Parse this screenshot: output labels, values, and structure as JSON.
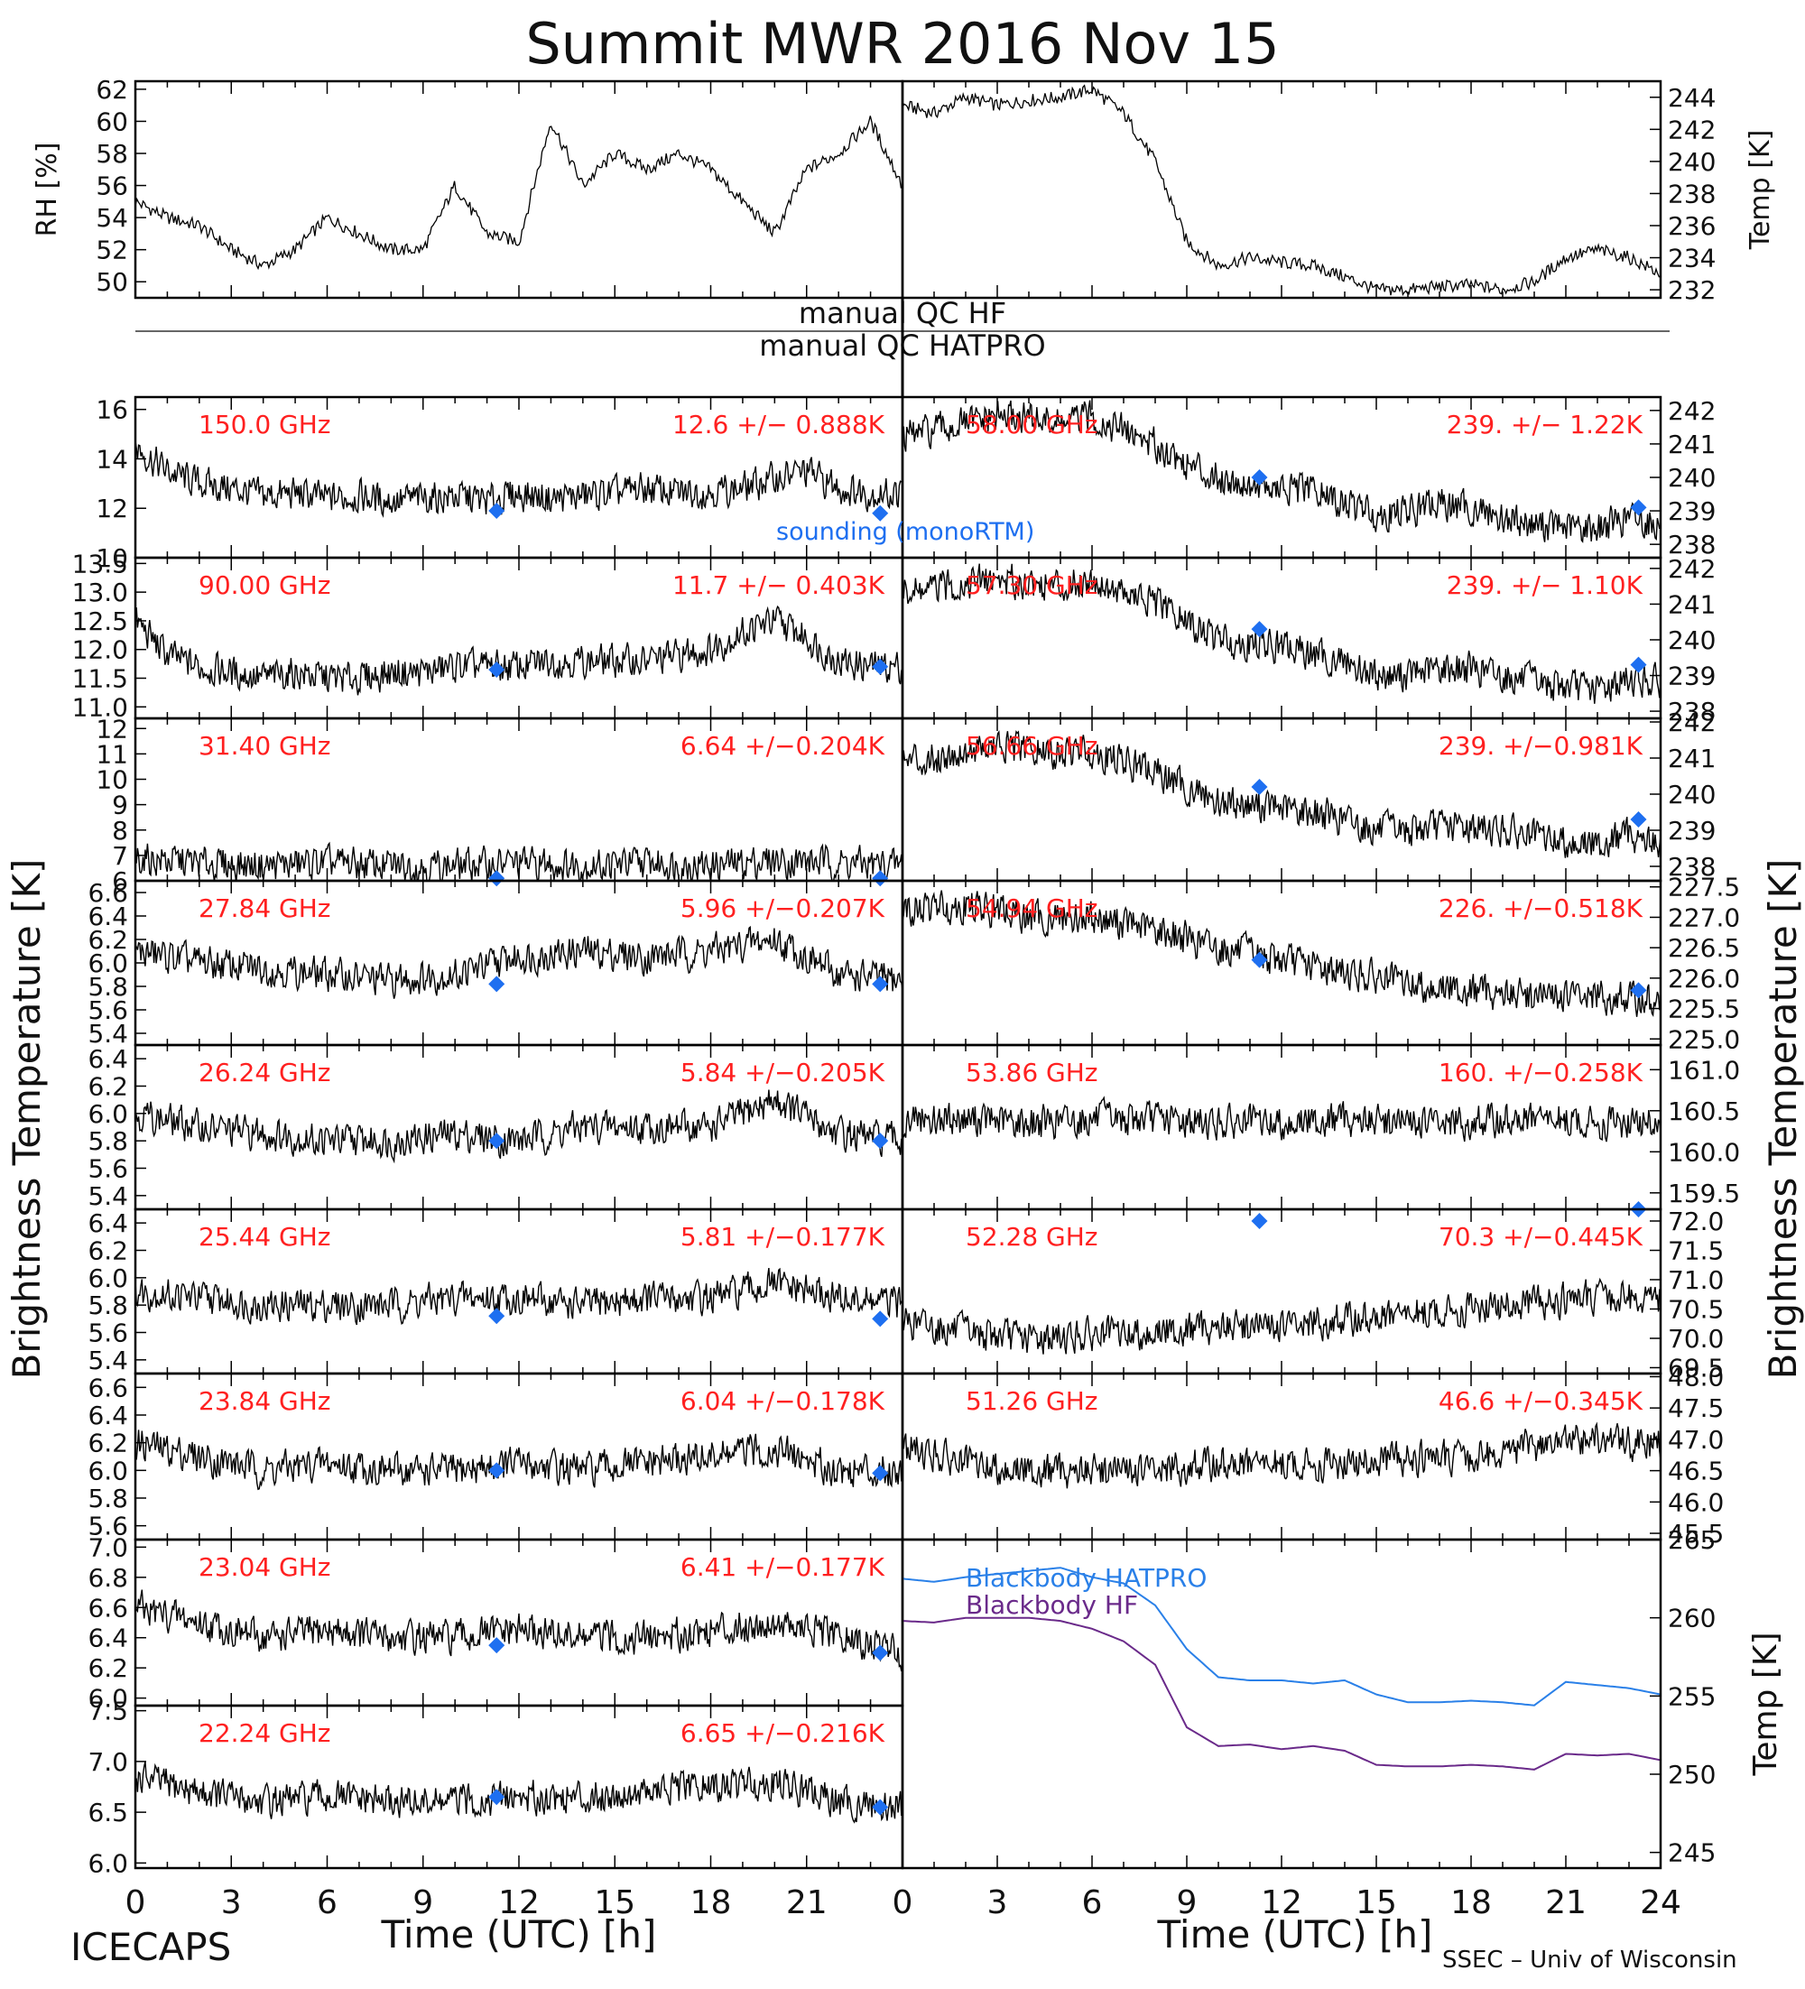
{
  "title": "Summit MWR 2016 Nov 15",
  "footer": {
    "left": "ICECAPS",
    "right": "SSEC – Univ of Wisconsin"
  },
  "labels": {
    "bt_left": "Brightness Temperature [K]",
    "bt_right": "Brightness Temperature [K]",
    "xlabel": "Time (UTC) [h]",
    "manual_qc_hf": "manual QC HF",
    "manual_qc_hatpro": "manual QC HATPRO",
    "sounding": "sounding (monoRTM)"
  },
  "colors": {
    "annotation": "#ff2020",
    "sounding": "#1e6ff0",
    "hatpro_bb": "#2a80e8",
    "hf_bb": "#6a2a8a",
    "trace": "#000000"
  },
  "chart_data": [
    {
      "id": "rh",
      "type": "line",
      "ylabel": "RH [%]",
      "ylim": [
        49,
        62.5
      ],
      "yticks": [
        "50",
        "52",
        "54",
        "56",
        "58",
        "60",
        "62"
      ],
      "tick_values": [
        50,
        52,
        54,
        56,
        58,
        60,
        62
      ],
      "x": [
        0,
        1,
        2,
        3,
        4,
        5,
        6,
        7,
        8,
        9,
        10,
        11,
        12,
        13,
        14,
        15,
        16,
        17,
        18,
        19,
        20,
        21,
        22,
        23,
        24
      ],
      "values": [
        55,
        54,
        53.5,
        52,
        51,
        52,
        54,
        53,
        52,
        52,
        56,
        53,
        52.5,
        60,
        56,
        58,
        57,
        58,
        57,
        55,
        53,
        57,
        58,
        60,
        56
      ]
    },
    {
      "id": "temp",
      "type": "line",
      "ylabel": "Temp [K]",
      "ylim": [
        231.5,
        245
      ],
      "yticks": [
        "232",
        "234",
        "236",
        "238",
        "240",
        "242",
        "244"
      ],
      "tick_values": [
        232,
        234,
        236,
        238,
        240,
        242,
        244
      ],
      "x": [
        0,
        1,
        2,
        3,
        4,
        5,
        6,
        7,
        8,
        9,
        10,
        11,
        12,
        13,
        14,
        15,
        16,
        17,
        18,
        19,
        20,
        21,
        22,
        23,
        24
      ],
      "values": [
        243.5,
        243,
        244,
        243.5,
        243.8,
        244,
        244.5,
        243,
        240,
        235,
        233.5,
        234,
        233.7,
        233.5,
        232.8,
        232,
        232,
        232.2,
        232.3,
        232,
        232.5,
        234,
        234.5,
        234,
        233
      ]
    },
    {
      "id": "f150",
      "type": "scatter",
      "freq": "150.0 GHz",
      "stat": "12.6 +/− 0.888K",
      "ylim": [
        10,
        16.5
      ],
      "yticks": [
        "10",
        "12",
        "14",
        "16"
      ],
      "tick_values": [
        10,
        12,
        14,
        16
      ],
      "x": [
        0,
        1,
        2,
        3,
        4,
        5,
        6,
        7,
        8,
        9,
        10,
        11,
        12,
        13,
        14,
        15,
        16,
        17,
        18,
        19,
        20,
        21,
        22,
        23
      ],
      "values": [
        14.5,
        13.5,
        13,
        12.8,
        12.5,
        12.6,
        12.4,
        12.5,
        12.3,
        12.4,
        12.5,
        12.3,
        12.6,
        12.4,
        12.5,
        12.6,
        12.8,
        12.6,
        12.7,
        12.8,
        13.2,
        13.5,
        12.8,
        12.6
      ],
      "sounding": [
        [
          11.3,
          11.9
        ],
        [
          23.3,
          11.8
        ]
      ]
    },
    {
      "id": "f90",
      "type": "scatter",
      "freq": "90.00 GHz",
      "stat": "11.7 +/− 0.403K",
      "ylim": [
        10.8,
        13.6
      ],
      "yticks": [
        "11.0",
        "11.5",
        "12.0",
        "12.5",
        "13.0",
        "13.5"
      ],
      "tick_values": [
        11,
        11.5,
        12,
        12.5,
        13,
        13.5
      ],
      "x": [
        0,
        1,
        2,
        3,
        4,
        5,
        6,
        7,
        8,
        9,
        10,
        11,
        12,
        13,
        14,
        15,
        16,
        17,
        18,
        19,
        20,
        21,
        22,
        23
      ],
      "values": [
        12.5,
        11.9,
        11.7,
        11.6,
        11.5,
        11.6,
        11.5,
        11.5,
        11.6,
        11.6,
        11.7,
        11.7,
        11.7,
        11.8,
        11.8,
        11.8,
        11.8,
        11.9,
        12,
        12.3,
        12.5,
        12.2,
        11.8,
        11.7
      ],
      "sounding": [
        [
          11.3,
          11.65
        ],
        [
          23.3,
          11.7
        ]
      ]
    },
    {
      "id": "f31",
      "type": "scatter",
      "freq": "31.40 GHz",
      "stat": "6.64 +/−0.204K",
      "ylim": [
        6,
        12.4
      ],
      "yticks": [
        "6",
        "7",
        "8",
        "9",
        "10",
        "11",
        "12"
      ],
      "tick_values": [
        6,
        7,
        8,
        9,
        10,
        11,
        12
      ],
      "x": [
        0,
        2,
        4,
        6,
        8,
        10,
        12,
        14,
        16,
        18,
        20,
        22,
        24
      ],
      "values": [
        6.9,
        6.7,
        6.6,
        6.7,
        6.6,
        6.6,
        6.7,
        6.6,
        6.7,
        6.6,
        6.8,
        6.7,
        6.6
      ],
      "sounding": [
        [
          11.3,
          6.1
        ],
        [
          23.3,
          6.1
        ]
      ]
    },
    {
      "id": "f27",
      "type": "scatter",
      "freq": "27.84 GHz",
      "stat": "5.96 +/−0.207K",
      "ylim": [
        5.3,
        6.7
      ],
      "yticks": [
        "5.4",
        "5.6",
        "5.8",
        "6.0",
        "6.2",
        "6.4",
        "6.6"
      ],
      "tick_values": [
        5.4,
        5.6,
        5.8,
        6,
        6.2,
        6.4,
        6.6
      ],
      "x": [
        0,
        2,
        4,
        6,
        8,
        10,
        12,
        14,
        16,
        18,
        20,
        22,
        24
      ],
      "values": [
        6.1,
        6,
        5.95,
        5.9,
        5.85,
        5.9,
        6.05,
        6.1,
        6.05,
        6.1,
        6.2,
        5.9,
        5.85
      ],
      "sounding": [
        [
          11.3,
          5.82
        ],
        [
          23.3,
          5.82
        ]
      ]
    },
    {
      "id": "f26",
      "type": "scatter",
      "freq": "26.24 GHz",
      "stat": "5.84 +/−0.205K",
      "ylim": [
        5.3,
        6.5
      ],
      "yticks": [
        "5.4",
        "5.6",
        "5.8",
        "6.0",
        "6.2",
        "6.4"
      ],
      "tick_values": [
        5.4,
        5.6,
        5.8,
        6,
        6.2,
        6.4
      ],
      "x": [
        0,
        2,
        4,
        6,
        8,
        10,
        12,
        14,
        16,
        18,
        20,
        22,
        24
      ],
      "values": [
        6,
        5.9,
        5.85,
        5.8,
        5.8,
        5.85,
        5.8,
        5.9,
        5.9,
        5.9,
        6.1,
        5.85,
        5.8
      ],
      "sounding": [
        [
          11.3,
          5.8
        ],
        [
          23.3,
          5.8
        ]
      ]
    },
    {
      "id": "f25",
      "type": "scatter",
      "freq": "25.44 GHz",
      "stat": "5.81 +/−0.177K",
      "ylim": [
        5.3,
        6.5
      ],
      "yticks": [
        "5.4",
        "5.6",
        "5.8",
        "6.0",
        "6.2",
        "6.4"
      ],
      "tick_values": [
        5.4,
        5.6,
        5.8,
        6,
        6.2,
        6.4
      ],
      "x": [
        0,
        2,
        4,
        6,
        8,
        10,
        12,
        14,
        16,
        18,
        20,
        22,
        24
      ],
      "values": [
        5.9,
        5.85,
        5.8,
        5.8,
        5.8,
        5.85,
        5.85,
        5.8,
        5.85,
        5.85,
        5.95,
        5.85,
        5.8
      ],
      "sounding": [
        [
          11.3,
          5.72
        ],
        [
          23.3,
          5.7
        ]
      ]
    },
    {
      "id": "f23",
      "type": "scatter",
      "freq": "23.84 GHz",
      "stat": "6.04 +/−0.178K",
      "ylim": [
        5.5,
        6.7
      ],
      "yticks": [
        "5.6",
        "5.8",
        "6.0",
        "6.2",
        "6.4",
        "6.6"
      ],
      "tick_values": [
        5.6,
        5.8,
        6,
        6.2,
        6.4,
        6.6
      ],
      "x": [
        0,
        2,
        4,
        6,
        8,
        10,
        12,
        14,
        16,
        18,
        20,
        22,
        24
      ],
      "values": [
        6.2,
        6.1,
        6,
        6.05,
        6,
        6,
        6.05,
        6,
        6.05,
        6.1,
        6.15,
        6,
        6
      ],
      "sounding": [
        [
          11.3,
          6.0
        ],
        [
          23.3,
          5.98
        ]
      ]
    },
    {
      "id": "f23b",
      "type": "scatter",
      "freq": "23.04 GHz",
      "stat": "6.41 +/−0.177K",
      "ylim": [
        5.95,
        7.05
      ],
      "yticks": [
        "6.0",
        "6.2",
        "6.4",
        "6.6",
        "6.8",
        "7.0"
      ],
      "tick_values": [
        6,
        6.2,
        6.4,
        6.6,
        6.8,
        7
      ],
      "x": [
        0,
        2,
        4,
        6,
        8,
        10,
        12,
        14,
        16,
        18,
        20,
        22,
        24
      ],
      "values": [
        6.6,
        6.5,
        6.4,
        6.45,
        6.4,
        6.4,
        6.45,
        6.4,
        6.4,
        6.45,
        6.5,
        6.4,
        6.3
      ],
      "sounding": [
        [
          11.3,
          6.35
        ],
        [
          23.3,
          6.3
        ]
      ]
    },
    {
      "id": "f22",
      "type": "scatter",
      "freq": "22.24 GHz",
      "stat": "6.65 +/−0.216K",
      "ylim": [
        5.95,
        7.55
      ],
      "yticks": [
        "6.0",
        "6.5",
        "7.0",
        "7.5"
      ],
      "tick_values": [
        6,
        6.5,
        7,
        7.5
      ],
      "x": [
        0,
        2,
        4,
        6,
        8,
        10,
        12,
        14,
        16,
        18,
        20,
        22,
        24
      ],
      "values": [
        6.85,
        6.7,
        6.6,
        6.65,
        6.6,
        6.6,
        6.65,
        6.65,
        6.7,
        6.75,
        6.8,
        6.6,
        6.55
      ],
      "sounding": [
        [
          11.3,
          6.65
        ],
        [
          23.3,
          6.55
        ]
      ]
    },
    {
      "id": "f58",
      "type": "scatter",
      "freq": "58.00 GHz",
      "stat": "239. +/− 1.22K",
      "ylim": [
        237.6,
        242.4
      ],
      "yticks": [
        "238",
        "239",
        "240",
        "241",
        "242"
      ],
      "tick_values": [
        238,
        239,
        240,
        241,
        242
      ],
      "x": [
        0,
        1,
        2,
        3,
        4,
        5,
        6,
        7,
        8,
        9,
        10,
        11,
        12,
        13,
        14,
        15,
        16,
        17,
        18,
        19,
        20,
        21,
        22,
        23,
        24
      ],
      "values": [
        241.2,
        241.4,
        241.6,
        241.8,
        241.8,
        241.6,
        241.8,
        241.4,
        241,
        240.4,
        240,
        239.8,
        239.6,
        239.6,
        239.2,
        238.9,
        239,
        239.2,
        239.1,
        238.8,
        238.6,
        238.5,
        238.5,
        238.8,
        238.6
      ],
      "sounding": [
        [
          11.3,
          240.0
        ],
        [
          23.3,
          239.1
        ]
      ]
    },
    {
      "id": "f57",
      "type": "scatter",
      "freq": "57.30 GHz",
      "stat": "239. +/− 1.10K",
      "ylim": [
        237.8,
        242.3
      ],
      "yticks": [
        "238",
        "239",
        "240",
        "241",
        "242"
      ],
      "tick_values": [
        238,
        239,
        240,
        241,
        242
      ],
      "x": [
        0,
        1,
        2,
        3,
        4,
        5,
        6,
        7,
        8,
        9,
        10,
        11,
        12,
        13,
        14,
        15,
        16,
        17,
        18,
        19,
        20,
        21,
        22,
        23,
        24
      ],
      "values": [
        241.3,
        241.4,
        241.6,
        241.7,
        241.6,
        241.5,
        241.7,
        241.3,
        241,
        240.5,
        240,
        239.9,
        239.8,
        239.6,
        239.4,
        239,
        239,
        239.2,
        239.2,
        239,
        238.8,
        238.7,
        238.6,
        238.9,
        238.8
      ],
      "sounding": [
        [
          11.3,
          240.3
        ],
        [
          23.3,
          239.3
        ]
      ]
    },
    {
      "id": "f56",
      "type": "scatter",
      "freq": "56.66 GHz",
      "stat": "239. +/−0.981K",
      "ylim": [
        237.6,
        242.1
      ],
      "yticks": [
        "238",
        "239",
        "240",
        "241",
        "242"
      ],
      "tick_values": [
        238,
        239,
        240,
        241,
        242
      ],
      "x": [
        0,
        1,
        2,
        3,
        4,
        5,
        6,
        7,
        8,
        9,
        10,
        11,
        12,
        13,
        14,
        15,
        16,
        17,
        18,
        19,
        20,
        21,
        22,
        23,
        24
      ],
      "values": [
        240.9,
        241,
        241.2,
        241.3,
        241.2,
        241.1,
        241.2,
        240.9,
        240.6,
        240.2,
        239.8,
        239.7,
        239.6,
        239.5,
        239.3,
        239,
        239,
        239.1,
        239.1,
        239,
        238.8,
        238.7,
        238.6,
        238.9,
        238.6
      ],
      "sounding": [
        [
          11.3,
          240.2
        ],
        [
          23.3,
          239.3
        ]
      ]
    },
    {
      "id": "f54",
      "type": "scatter",
      "freq": "54.94 GHz",
      "stat": "226. +/−0.518K",
      "ylim": [
        224.9,
        227.6
      ],
      "yticks": [
        "225.0",
        "225.5",
        "226.0",
        "226.5",
        "227.0",
        "227.5"
      ],
      "tick_values": [
        225,
        225.5,
        226,
        226.5,
        227,
        227.5
      ],
      "x": [
        0,
        2,
        4,
        6,
        8,
        10,
        12,
        14,
        16,
        18,
        20,
        22,
        24
      ],
      "values": [
        227.1,
        227.2,
        227,
        227,
        226.8,
        226.5,
        226.3,
        226.1,
        225.9,
        225.8,
        225.7,
        225.7,
        225.6
      ],
      "sounding": [
        [
          11.3,
          226.3
        ],
        [
          23.3,
          225.8
        ]
      ]
    },
    {
      "id": "f53",
      "type": "scatter",
      "freq": "53.86 GHz",
      "stat": "160. +/−0.258K",
      "ylim": [
        159.3,
        161.3
      ],
      "yticks": [
        "159.5",
        "160.0",
        "160.5",
        "161.0"
      ],
      "tick_values": [
        159.5,
        160,
        160.5,
        161
      ],
      "x": [
        0,
        2,
        4,
        6,
        8,
        10,
        12,
        14,
        16,
        18,
        20,
        22,
        24
      ],
      "values": [
        160.4,
        160.4,
        160.35,
        160.4,
        160.4,
        160.35,
        160.35,
        160.4,
        160.35,
        160.35,
        160.4,
        160.35,
        160.35
      ],
      "sounding": []
    },
    {
      "id": "f52",
      "type": "scatter",
      "freq": "52.28 GHz",
      "stat": "70.3 +/−0.445K",
      "ylim": [
        69.4,
        72.2
      ],
      "yticks": [
        "69.5",
        "70.0",
        "70.5",
        "71.0",
        "71.5",
        "72.0"
      ],
      "tick_values": [
        69.5,
        70,
        70.5,
        71,
        71.5,
        72
      ],
      "x": [
        0,
        2,
        4,
        6,
        8,
        10,
        12,
        14,
        16,
        18,
        20,
        22,
        24
      ],
      "values": [
        70.3,
        70.1,
        70,
        70.05,
        70.1,
        70.2,
        70.2,
        70.3,
        70.4,
        70.5,
        70.6,
        70.7,
        70.7
      ],
      "sounding": [
        [
          11.3,
          72.0
        ],
        [
          23.3,
          72.2
        ]
      ]
    },
    {
      "id": "f51",
      "type": "scatter",
      "freq": "51.26 GHz",
      "stat": "46.6 +/−0.345K",
      "ylim": [
        45.4,
        48.05
      ],
      "yticks": [
        "45.5",
        "46.0",
        "46.5",
        "47.0",
        "47.5",
        "48.0"
      ],
      "tick_values": [
        45.5,
        46,
        46.5,
        47,
        47.5,
        48
      ],
      "x": [
        0,
        2,
        4,
        6,
        8,
        10,
        12,
        14,
        16,
        18,
        20,
        22,
        24
      ],
      "values": [
        46.9,
        46.6,
        46.5,
        46.5,
        46.5,
        46.6,
        46.6,
        46.6,
        46.7,
        46.7,
        46.9,
        47,
        46.9
      ],
      "sounding": []
    },
    {
      "id": "blackbody",
      "type": "line",
      "ylabel": "Temp [K]",
      "ylim": [
        244,
        265
      ],
      "yticks": [
        "245",
        "250",
        "255",
        "260",
        "265"
      ],
      "tick_values": [
        245,
        250,
        255,
        260,
        265
      ],
      "x": [
        0,
        1,
        2,
        3,
        4,
        5,
        6,
        7,
        8,
        9,
        10,
        11,
        12,
        13,
        14,
        15,
        16,
        17,
        18,
        19,
        20,
        21,
        22,
        23,
        24
      ],
      "series": [
        {
          "name": "Blackbody HATPRO",
          "values": [
            262.5,
            262.3,
            262.6,
            262.8,
            263,
            263.2,
            262.6,
            262.2,
            260.8,
            258,
            256.2,
            256,
            256,
            255.8,
            256,
            255.1,
            254.6,
            254.6,
            254.7,
            254.6,
            254.4,
            255.9,
            255.7,
            255.5,
            255.1
          ]
        },
        {
          "name": "Blackbody HF",
          "values": [
            259.8,
            259.7,
            260,
            260,
            260,
            259.8,
            259.3,
            258.5,
            257,
            253,
            251.8,
            251.9,
            251.6,
            251.8,
            251.5,
            250.6,
            250.5,
            250.5,
            250.6,
            250.5,
            250.3,
            251.3,
            251.2,
            251.3,
            250.9
          ]
        }
      ]
    }
  ]
}
